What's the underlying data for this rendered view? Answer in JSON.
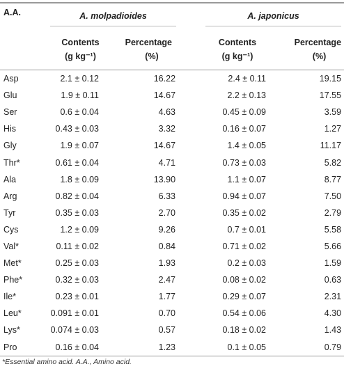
{
  "table": {
    "header": {
      "aa": "A.A.",
      "groups": [
        "A. molpadioides",
        "A. japonicus"
      ],
      "contents": "Contents",
      "contents_unit": "(g kg⁻¹)",
      "percentage": "Percentage",
      "percentage_unit": "(%)"
    },
    "rows": [
      [
        "Asp",
        "2.1 ± 0.12",
        "16.22",
        "2.4 ± 0.11",
        "19.15"
      ],
      [
        "Glu",
        "1.9 ± 0.11",
        "14.67",
        "2.2 ± 0.13",
        "17.55"
      ],
      [
        "Ser",
        "0.6 ± 0.04",
        "4.63",
        "0.45 ± 0.09",
        "3.59"
      ],
      [
        "His",
        "0.43 ± 0.03",
        "3.32",
        "0.16 ± 0.07",
        "1.27"
      ],
      [
        "Gly",
        "1.9 ± 0.07",
        "14.67",
        "1.4 ± 0.05",
        "11.17"
      ],
      [
        "Thr*",
        "0.61 ± 0.04",
        "4.71",
        "0.73 ± 0.03",
        "5.82"
      ],
      [
        "Ala",
        "1.8 ± 0.09",
        "13.90",
        "1.1 ± 0.07",
        "8.77"
      ],
      [
        "Arg",
        "0.82 ± 0.04",
        "6.33",
        "0.94 ± 0.07",
        "7.50"
      ],
      [
        "Tyr",
        "0.35 ± 0.03",
        "2.70",
        "0.35 ± 0.02",
        "2.79"
      ],
      [
        "Cys",
        "1.2 ± 0.09",
        "9.26",
        "0.7 ± 0.01",
        "5.58"
      ],
      [
        "Val*",
        "0.11 ± 0.02",
        "0.84",
        "0.71 ± 0.02",
        "5.66"
      ],
      [
        "Met*",
        "0.25 ± 0.03",
        "1.93",
        "0.2 ± 0.03",
        "1.59"
      ],
      [
        "Phe*",
        "0.32 ± 0.03",
        "2.47",
        "0.08 ± 0.02",
        "0.63"
      ],
      [
        "Ile*",
        "0.23 ± 0.01",
        "1.77",
        "0.29 ± 0.07",
        "2.31"
      ],
      [
        "Leu*",
        "0.091 ± 0.01",
        "0.70",
        "0.54 ± 0.06",
        "4.30"
      ],
      [
        "Lys*",
        "0.074 ± 0.03",
        "0.57",
        "0.18 ± 0.02",
        "1.43"
      ],
      [
        "Pro",
        "0.16 ± 0.04",
        "1.23",
        "0.1 ± 0.05",
        "0.79"
      ]
    ],
    "footnote": "*Essential amino acid. A.A., Amino acid."
  }
}
